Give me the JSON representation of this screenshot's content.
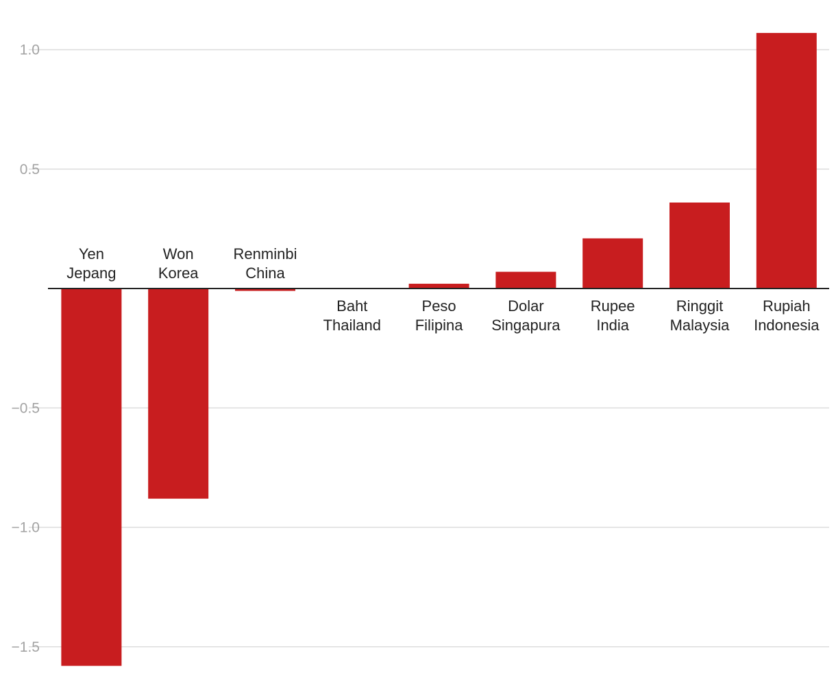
{
  "chart_data": {
    "type": "bar",
    "title": "",
    "xlabel": "",
    "ylabel": "",
    "ylim": [
      -1.6,
      1.1
    ],
    "yticks": [
      1.0,
      0.5,
      -0.5,
      -1.0,
      -1.5
    ],
    "ytick_labels": [
      "1.0",
      "0.5",
      "−0.5",
      "−1.0",
      "−1.5"
    ],
    "grid": true,
    "legend": "none",
    "bar_color": "#c81d1f",
    "categories": [
      [
        "Yen",
        "Jepang"
      ],
      [
        "Won",
        "Korea"
      ],
      [
        "Renminbi",
        "China"
      ],
      [
        "Baht",
        "Thailand"
      ],
      [
        "Peso",
        "Filipina"
      ],
      [
        "Dolar",
        "Singapura"
      ],
      [
        "Rupee",
        "India"
      ],
      [
        "Ringgit",
        "Malaysia"
      ],
      [
        "Rupiah",
        "Indonesia"
      ]
    ],
    "values": [
      -1.58,
      -0.88,
      -0.01,
      0.0,
      0.02,
      0.07,
      0.21,
      0.36,
      1.07
    ]
  }
}
